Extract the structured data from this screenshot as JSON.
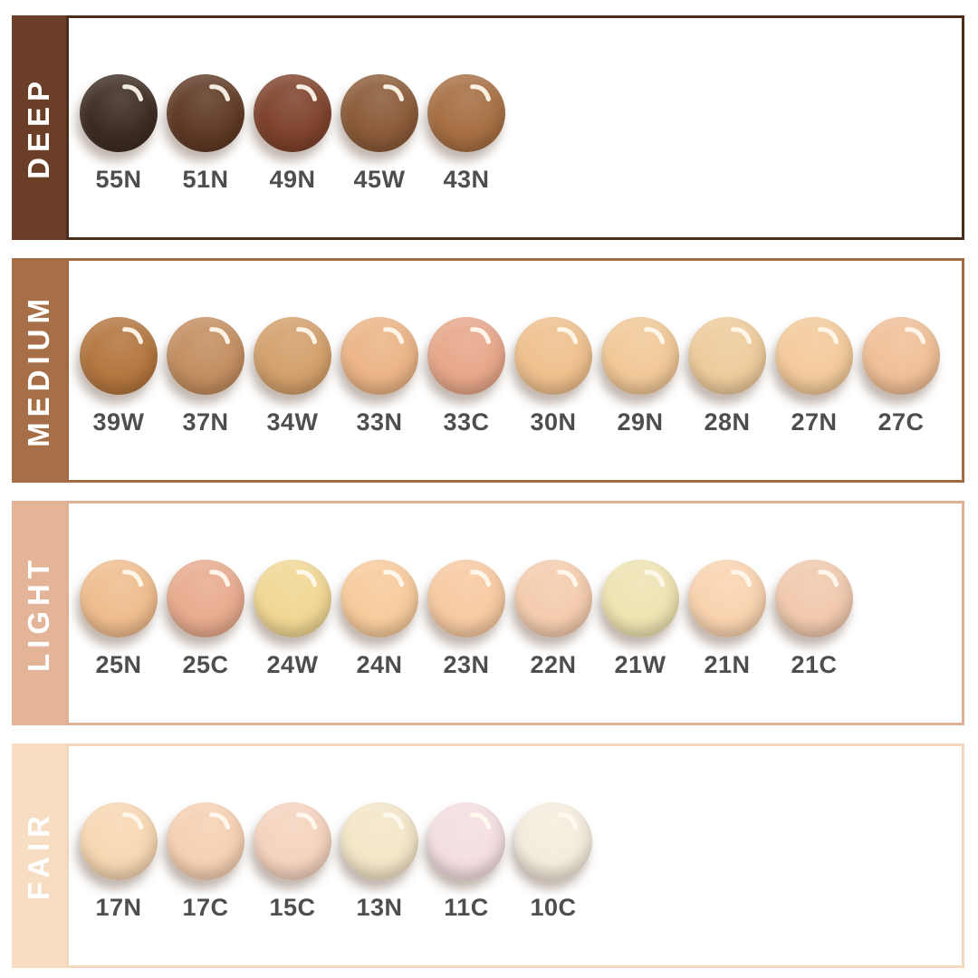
{
  "theme": {
    "page_background": "#ffffff",
    "code_text_color": "#4E4E4E",
    "sidebar_text_color": "#ffffff",
    "gloss_color": "rgba(255,250,240,0.92)"
  },
  "sections": [
    {
      "id": "deep",
      "label": "DEEP",
      "sidebar_color": "#6B3F27",
      "border_color": "#4C2D1B",
      "swatches": [
        {
          "code": "55N",
          "color": "#3E2C23"
        },
        {
          "code": "51N",
          "color": "#603A25"
        },
        {
          "code": "49N",
          "color": "#7F432C"
        },
        {
          "code": "45W",
          "color": "#8B5B39"
        },
        {
          "code": "43N",
          "color": "#A76F43"
        }
      ]
    },
    {
      "id": "medium",
      "label": "MEDIUM",
      "sidebar_color": "#A76F47",
      "border_color": "#A06A42",
      "swatches": [
        {
          "code": "39W",
          "color": "#B3763F"
        },
        {
          "code": "37N",
          "color": "#C38E60"
        },
        {
          "code": "34W",
          "color": "#D3A06B"
        },
        {
          "code": "33N",
          "color": "#EBB486"
        },
        {
          "code": "33C",
          "color": "#E7A78A"
        },
        {
          "code": "30N",
          "color": "#EFC08D"
        },
        {
          "code": "29N",
          "color": "#F1C897"
        },
        {
          "code": "28N",
          "color": "#EECB9C"
        },
        {
          "code": "27N",
          "color": "#F3CA9B"
        },
        {
          "code": "27C",
          "color": "#F0BF97"
        }
      ]
    },
    {
      "id": "light",
      "label": "LIGHT",
      "sidebar_color": "#E3B498",
      "border_color": "#DFB195",
      "swatches": [
        {
          "code": "25N",
          "color": "#EFBD8E"
        },
        {
          "code": "25C",
          "color": "#E8AB8E"
        },
        {
          "code": "24W",
          "color": "#F1D794"
        },
        {
          "code": "24N",
          "color": "#F7CB9C"
        },
        {
          "code": "23N",
          "color": "#F7CAA2"
        },
        {
          "code": "22N",
          "color": "#F4CCAE"
        },
        {
          "code": "21W",
          "color": "#EFE3B2"
        },
        {
          "code": "21N",
          "color": "#F9D3AF"
        },
        {
          "code": "21C",
          "color": "#F1C9AE"
        }
      ]
    },
    {
      "id": "fair",
      "label": "FAIR",
      "sidebar_color": "#F7DDC2",
      "border_color": "#F1D8BD",
      "swatches": [
        {
          "code": "17N",
          "color": "#F7D7B2"
        },
        {
          "code": "17C",
          "color": "#F6D0B2"
        },
        {
          "code": "15C",
          "color": "#F5D3BE"
        },
        {
          "code": "13N",
          "color": "#F3E6C8"
        },
        {
          "code": "11C",
          "color": "#F4DEE1"
        },
        {
          "code": "10C",
          "color": "#F4ECDD"
        }
      ]
    }
  ]
}
